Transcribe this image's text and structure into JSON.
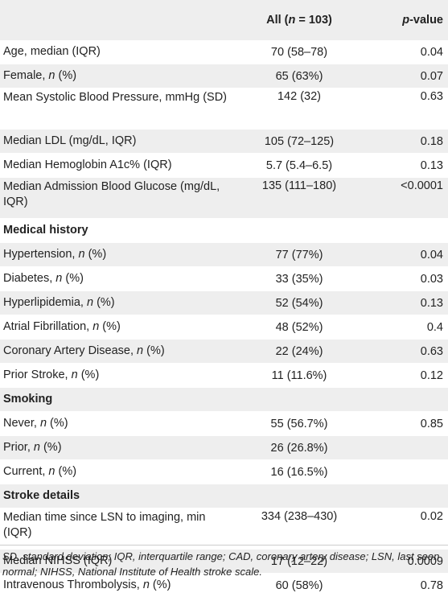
{
  "header": {
    "col_label": "",
    "col_all_pre": "All (",
    "col_all_n": "n",
    "col_all_post": " = 103)",
    "col_p_pre": "p",
    "col_p_post": "-value"
  },
  "rows": [
    {
      "label": "Age, median (IQR)",
      "value": "70 (58–78)",
      "p": "0.04"
    },
    {
      "label_pre": "Female, ",
      "label_n": "n",
      "label_post": " (%)",
      "value": "65 (63%)",
      "p": "0.07"
    },
    {
      "label": "Mean Systolic Blood Pressure, mmHg (SD)",
      "value": "142 (32)",
      "p": "0.63"
    },
    {
      "label": "Median LDL (mg/dL, IQR)",
      "value": "105 (72–125)",
      "p": "0.18"
    },
    {
      "label": "Median Hemoglobin A1c% (IQR)",
      "value": "5.7 (5.4–6.5)",
      "p": "0.13"
    },
    {
      "label": "Median Admission Blood Glucose (mg/dL, IQR)",
      "value": "135 (111–180)",
      "p": "<0.0001"
    }
  ],
  "sections": {
    "medical_history": "Medical history",
    "smoking": "Smoking",
    "stroke_details": "Stroke details"
  },
  "medical_history": [
    {
      "label_pre": "Hypertension, ",
      "label_n": "n",
      "label_post": " (%)",
      "value": "77 (77%)",
      "p": "0.04"
    },
    {
      "label_pre": "Diabetes, ",
      "label_n": "n",
      "label_post": " (%)",
      "value": "33 (35%)",
      "p": "0.03"
    },
    {
      "label_pre": "Hyperlipidemia, ",
      "label_n": "n",
      "label_post": " (%)",
      "value": "52 (54%)",
      "p": "0.13"
    },
    {
      "label_pre": "Atrial Fibrillation, ",
      "label_n": "n",
      "label_post": " (%)",
      "value": "48 (52%)",
      "p": "0.4"
    },
    {
      "label_pre": "Coronary Artery Disease, ",
      "label_n": "n",
      "label_post": " (%)",
      "value": "22 (24%)",
      "p": "0.63"
    },
    {
      "label_pre": "Prior Stroke, ",
      "label_n": "n",
      "label_post": " (%)",
      "value": "11 (11.6%)",
      "p": "0.12"
    }
  ],
  "smoking": [
    {
      "label_pre": "Never, ",
      "label_n": "n",
      "label_post": " (%)",
      "value": "55 (56.7%)",
      "p": "0.85"
    },
    {
      "label_pre": "Prior, ",
      "label_n": "n",
      "label_post": " (%)",
      "value": "26 (26.8%)",
      "p": ""
    },
    {
      "label_pre": "Current, ",
      "label_n": "n",
      "label_post": " (%)",
      "value": "16 (16.5%)",
      "p": ""
    }
  ],
  "stroke_details": [
    {
      "label": "Median time since LSN to imaging, min (IQR)",
      "value": "334 (238–430)",
      "p": "0.02"
    },
    {
      "label": "Median NIHSS (IQR)",
      "value": "17 (12–22)",
      "p": "0.0009"
    },
    {
      "label_pre": "Intravenous Thrombolysis, ",
      "label_n": "n",
      "label_post": " (%)",
      "value": "60 (58%)",
      "p": "0.78"
    }
  ],
  "footnote": "SD, standard deviation; IQR, interquartile range; CAD, coronary artery disease; LSN, last seen normal; NIHSS, National Institute of Health stroke scale."
}
